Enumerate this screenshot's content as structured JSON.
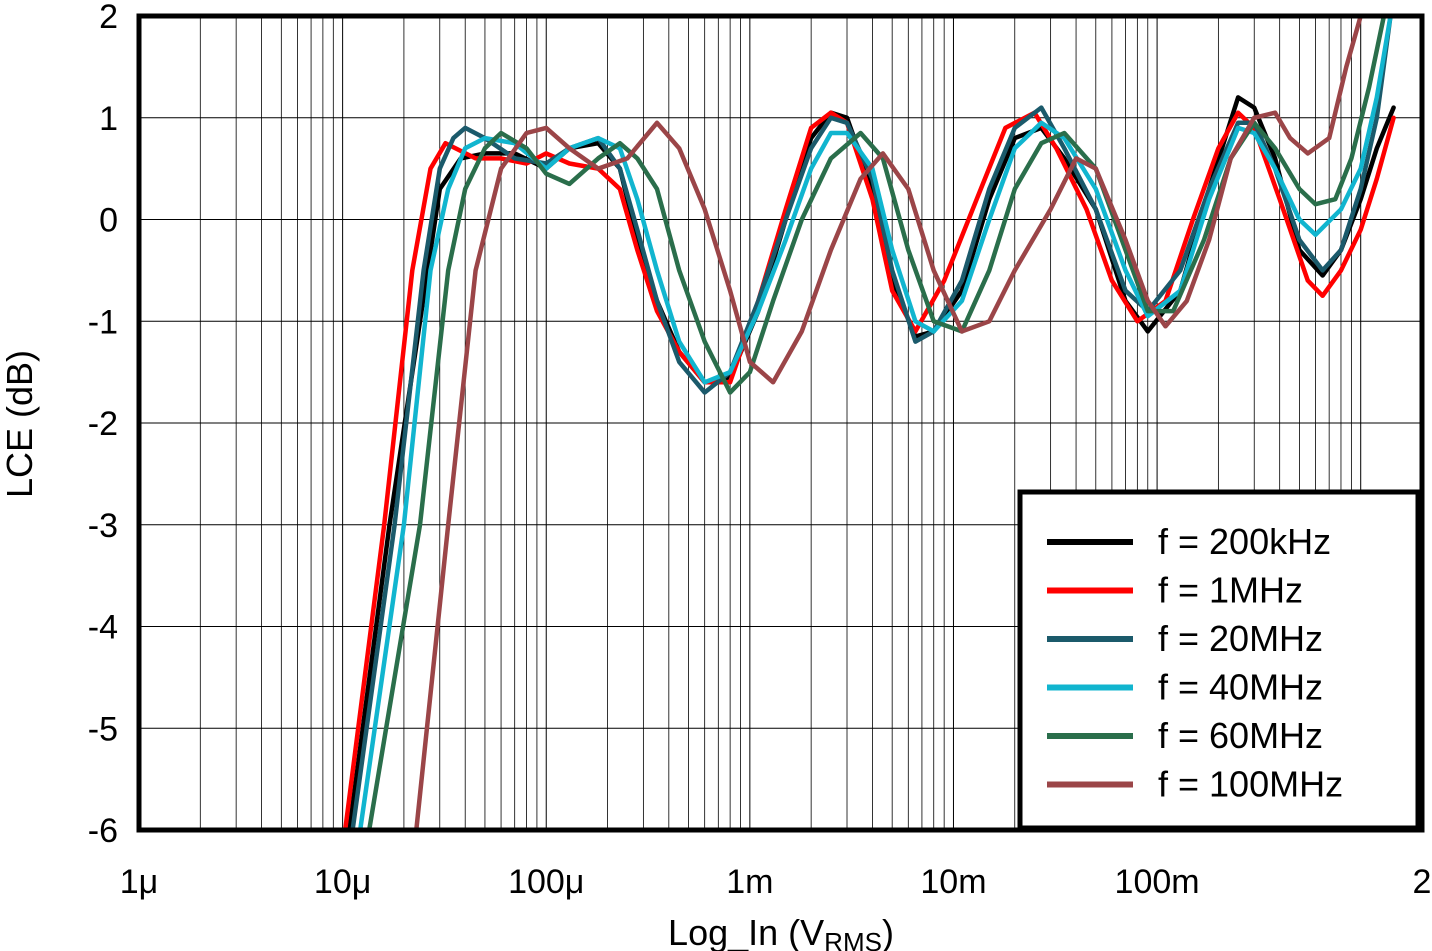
{
  "chart_data": {
    "type": "line",
    "xlabel": "Log_In (V",
    "xlabel_sub": "RMS",
    "xlabel_end": ")",
    "ylabel": "LCE (dB)",
    "x_scale": "log",
    "xlim": [
      1e-06,
      2
    ],
    "ylim": [
      -6,
      2
    ],
    "x_tick_values": [
      1e-06,
      1e-05,
      0.0001,
      0.001,
      0.01,
      0.1,
      2
    ],
    "x_tick_labels": [
      "1μ",
      "10μ",
      "100μ",
      "1m",
      "10m",
      "100m",
      "2"
    ],
    "y_ticks": [
      2,
      1,
      0,
      -1,
      -2,
      -3,
      -4,
      -5,
      -6
    ],
    "grid": true,
    "legend_position": "bottom-right",
    "series": [
      {
        "name": "f = 200kHz",
        "color": "#000000",
        "points": [
          [
            1.08e-05,
            -6
          ],
          [
            1.7e-05,
            -3
          ],
          [
            2.4e-05,
            -1
          ],
          [
            3e-05,
            0.3
          ],
          [
            3.8e-05,
            0.6
          ],
          [
            5e-05,
            0.65
          ],
          [
            7e-05,
            0.65
          ],
          [
            0.0001,
            0.5
          ],
          [
            0.00013,
            0.7
          ],
          [
            0.00018,
            0.75
          ],
          [
            0.00023,
            0.5
          ],
          [
            0.00028,
            -0.2
          ],
          [
            0.00035,
            -0.8
          ],
          [
            0.00045,
            -1.3
          ],
          [
            0.0006,
            -1.6
          ],
          [
            0.0008,
            -1.55
          ],
          [
            0.0011,
            -0.9
          ],
          [
            0.0015,
            0.0
          ],
          [
            0.002,
            0.8
          ],
          [
            0.0025,
            1.05
          ],
          [
            0.003,
            1.0
          ],
          [
            0.004,
            0.3
          ],
          [
            0.005,
            -0.6
          ],
          [
            0.0065,
            -1.15
          ],
          [
            0.008,
            -1.1
          ],
          [
            0.011,
            -0.7
          ],
          [
            0.015,
            0.2
          ],
          [
            0.02,
            0.8
          ],
          [
            0.027,
            0.9
          ],
          [
            0.035,
            0.6
          ],
          [
            0.05,
            0.1
          ],
          [
            0.07,
            -0.8
          ],
          [
            0.09,
            -1.1
          ],
          [
            0.13,
            -0.7
          ],
          [
            0.18,
            0.3
          ],
          [
            0.25,
            1.2
          ],
          [
            0.3,
            1.1
          ],
          [
            0.38,
            0.6
          ],
          [
            0.5,
            -0.3
          ],
          [
            0.65,
            -0.55
          ],
          [
            0.8,
            -0.3
          ],
          [
            1.0,
            0.2
          ],
          [
            1.2,
            0.7
          ],
          [
            1.45,
            1.1
          ]
        ]
      },
      {
        "name": "f = 1MHz",
        "color": "#ff0000",
        "points": [
          [
            1.03e-05,
            -6
          ],
          [
            1.6e-05,
            -3
          ],
          [
            2.2e-05,
            -0.5
          ],
          [
            2.7e-05,
            0.5
          ],
          [
            3.2e-05,
            0.75
          ],
          [
            4.5e-05,
            0.6
          ],
          [
            6e-05,
            0.6
          ],
          [
            8e-05,
            0.55
          ],
          [
            0.0001,
            0.65
          ],
          [
            0.00013,
            0.55
          ],
          [
            0.00018,
            0.5
          ],
          [
            0.00023,
            0.3
          ],
          [
            0.00028,
            -0.3
          ],
          [
            0.00035,
            -0.9
          ],
          [
            0.00045,
            -1.3
          ],
          [
            0.0006,
            -1.6
          ],
          [
            0.0008,
            -1.6
          ],
          [
            0.0011,
            -0.8
          ],
          [
            0.0015,
            0.1
          ],
          [
            0.002,
            0.9
          ],
          [
            0.0025,
            1.05
          ],
          [
            0.003,
            0.95
          ],
          [
            0.004,
            0.2
          ],
          [
            0.005,
            -0.7
          ],
          [
            0.0065,
            -1.1
          ],
          [
            0.009,
            -0.6
          ],
          [
            0.013,
            0.2
          ],
          [
            0.018,
            0.9
          ],
          [
            0.025,
            1.05
          ],
          [
            0.032,
            0.7
          ],
          [
            0.045,
            0.1
          ],
          [
            0.06,
            -0.6
          ],
          [
            0.08,
            -1.0
          ],
          [
            0.11,
            -0.8
          ],
          [
            0.15,
            0.0
          ],
          [
            0.2,
            0.7
          ],
          [
            0.25,
            1.05
          ],
          [
            0.3,
            0.9
          ],
          [
            0.4,
            0.2
          ],
          [
            0.55,
            -0.6
          ],
          [
            0.65,
            -0.75
          ],
          [
            0.8,
            -0.5
          ],
          [
            1.0,
            -0.1
          ],
          [
            1.2,
            0.4
          ],
          [
            1.45,
            1.0
          ]
        ]
      },
      {
        "name": "f = 20MHz",
        "color": "#1b5a6b",
        "points": [
          [
            1.12e-05,
            -6
          ],
          [
            1.8e-05,
            -3
          ],
          [
            2.5e-05,
            -0.5
          ],
          [
            3e-05,
            0.5
          ],
          [
            3.5e-05,
            0.8
          ],
          [
            4e-05,
            0.9
          ],
          [
            5e-05,
            0.8
          ],
          [
            7e-05,
            0.6
          ],
          [
            0.0001,
            0.55
          ],
          [
            0.00013,
            0.7
          ],
          [
            0.00018,
            0.8
          ],
          [
            0.00023,
            0.5
          ],
          [
            0.00028,
            -0.1
          ],
          [
            0.00035,
            -0.8
          ],
          [
            0.00045,
            -1.4
          ],
          [
            0.0006,
            -1.7
          ],
          [
            0.0008,
            -1.5
          ],
          [
            0.0011,
            -0.8
          ],
          [
            0.0015,
            0.0
          ],
          [
            0.002,
            0.7
          ],
          [
            0.0025,
            1.0
          ],
          [
            0.003,
            0.95
          ],
          [
            0.004,
            0.4
          ],
          [
            0.005,
            -0.5
          ],
          [
            0.0065,
            -1.2
          ],
          [
            0.008,
            -1.1
          ],
          [
            0.011,
            -0.6
          ],
          [
            0.015,
            0.3
          ],
          [
            0.02,
            0.9
          ],
          [
            0.027,
            1.1
          ],
          [
            0.035,
            0.7
          ],
          [
            0.05,
            0.1
          ],
          [
            0.07,
            -0.7
          ],
          [
            0.09,
            -0.9
          ],
          [
            0.13,
            -0.5
          ],
          [
            0.18,
            0.3
          ],
          [
            0.25,
            0.95
          ],
          [
            0.3,
            0.95
          ],
          [
            0.38,
            0.5
          ],
          [
            0.5,
            -0.2
          ],
          [
            0.65,
            -0.5
          ],
          [
            0.8,
            -0.3
          ],
          [
            1.0,
            0.3
          ],
          [
            1.2,
            1.0
          ],
          [
            1.4,
            2.0
          ]
        ]
      },
      {
        "name": "f = 40MHz",
        "color": "#11b5cf",
        "points": [
          [
            1.22e-05,
            -6
          ],
          [
            2e-05,
            -3
          ],
          [
            2.7e-05,
            -0.5
          ],
          [
            3.3e-05,
            0.3
          ],
          [
            4e-05,
            0.7
          ],
          [
            5e-05,
            0.8
          ],
          [
            7e-05,
            0.75
          ],
          [
            0.0001,
            0.5
          ],
          [
            0.00013,
            0.7
          ],
          [
            0.00018,
            0.8
          ],
          [
            0.00023,
            0.7
          ],
          [
            0.00028,
            0.2
          ],
          [
            0.00035,
            -0.5
          ],
          [
            0.00045,
            -1.2
          ],
          [
            0.0006,
            -1.6
          ],
          [
            0.0008,
            -1.5
          ],
          [
            0.0011,
            -0.9
          ],
          [
            0.0015,
            -0.2
          ],
          [
            0.002,
            0.5
          ],
          [
            0.0025,
            0.85
          ],
          [
            0.003,
            0.85
          ],
          [
            0.004,
            0.5
          ],
          [
            0.005,
            -0.3
          ],
          [
            0.0065,
            -1.0
          ],
          [
            0.008,
            -1.1
          ],
          [
            0.011,
            -0.8
          ],
          [
            0.015,
            0.0
          ],
          [
            0.02,
            0.7
          ],
          [
            0.027,
            0.95
          ],
          [
            0.035,
            0.8
          ],
          [
            0.05,
            0.3
          ],
          [
            0.07,
            -0.5
          ],
          [
            0.09,
            -0.95
          ],
          [
            0.13,
            -0.7
          ],
          [
            0.18,
            0.2
          ],
          [
            0.25,
            0.9
          ],
          [
            0.3,
            0.85
          ],
          [
            0.38,
            0.5
          ],
          [
            0.5,
            0.0
          ],
          [
            0.6,
            -0.15
          ],
          [
            0.8,
            0.1
          ],
          [
            1.0,
            0.5
          ],
          [
            1.2,
            1.2
          ],
          [
            1.4,
            2.0
          ]
        ]
      },
      {
        "name": "f = 60MHz",
        "color": "#2a6e4b",
        "points": [
          [
            1.35e-05,
            -6
          ],
          [
            2.4e-05,
            -3
          ],
          [
            3.3e-05,
            -0.5
          ],
          [
            4e-05,
            0.3
          ],
          [
            5e-05,
            0.7
          ],
          [
            6e-05,
            0.85
          ],
          [
            8e-05,
            0.7
          ],
          [
            0.0001,
            0.45
          ],
          [
            0.00013,
            0.35
          ],
          [
            0.00018,
            0.6
          ],
          [
            0.00023,
            0.75
          ],
          [
            0.00028,
            0.6
          ],
          [
            0.00035,
            0.3
          ],
          [
            0.00045,
            -0.5
          ],
          [
            0.0006,
            -1.2
          ],
          [
            0.0008,
            -1.7
          ],
          [
            0.001,
            -1.5
          ],
          [
            0.0013,
            -0.8
          ],
          [
            0.0018,
            0.0
          ],
          [
            0.0025,
            0.6
          ],
          [
            0.0035,
            0.85
          ],
          [
            0.0045,
            0.6
          ],
          [
            0.006,
            -0.3
          ],
          [
            0.008,
            -1.0
          ],
          [
            0.011,
            -1.1
          ],
          [
            0.015,
            -0.5
          ],
          [
            0.02,
            0.3
          ],
          [
            0.027,
            0.75
          ],
          [
            0.035,
            0.85
          ],
          [
            0.05,
            0.5
          ],
          [
            0.07,
            -0.3
          ],
          [
            0.09,
            -0.9
          ],
          [
            0.12,
            -0.9
          ],
          [
            0.17,
            -0.2
          ],
          [
            0.23,
            0.6
          ],
          [
            0.3,
            0.95
          ],
          [
            0.38,
            0.7
          ],
          [
            0.5,
            0.3
          ],
          [
            0.6,
            0.15
          ],
          [
            0.75,
            0.2
          ],
          [
            0.9,
            0.6
          ],
          [
            1.1,
            1.3
          ],
          [
            1.3,
            2.0
          ]
        ]
      },
      {
        "name": "f = 100MHz",
        "color": "#9b4548",
        "points": [
          [
            2.3e-05,
            -6
          ],
          [
            3.3e-05,
            -3
          ],
          [
            4.5e-05,
            -0.5
          ],
          [
            6e-05,
            0.5
          ],
          [
            8e-05,
            0.85
          ],
          [
            0.0001,
            0.9
          ],
          [
            0.00013,
            0.7
          ],
          [
            0.00018,
            0.5
          ],
          [
            0.00025,
            0.6
          ],
          [
            0.00035,
            0.95
          ],
          [
            0.00045,
            0.7
          ],
          [
            0.0006,
            0.1
          ],
          [
            0.0008,
            -0.7
          ],
          [
            0.001,
            -1.4
          ],
          [
            0.0013,
            -1.6
          ],
          [
            0.0018,
            -1.1
          ],
          [
            0.0025,
            -0.3
          ],
          [
            0.0035,
            0.4
          ],
          [
            0.0045,
            0.65
          ],
          [
            0.006,
            0.3
          ],
          [
            0.008,
            -0.5
          ],
          [
            0.011,
            -1.1
          ],
          [
            0.015,
            -1.0
          ],
          [
            0.02,
            -0.5
          ],
          [
            0.03,
            0.1
          ],
          [
            0.04,
            0.6
          ],
          [
            0.05,
            0.5
          ],
          [
            0.07,
            -0.2
          ],
          [
            0.09,
            -0.8
          ],
          [
            0.11,
            -1.05
          ],
          [
            0.14,
            -0.8
          ],
          [
            0.18,
            -0.2
          ],
          [
            0.23,
            0.6
          ],
          [
            0.3,
            1.0
          ],
          [
            0.38,
            1.05
          ],
          [
            0.45,
            0.8
          ],
          [
            0.55,
            0.65
          ],
          [
            0.7,
            0.8
          ],
          [
            0.85,
            1.5
          ],
          [
            1.0,
            2.0
          ]
        ]
      }
    ]
  }
}
